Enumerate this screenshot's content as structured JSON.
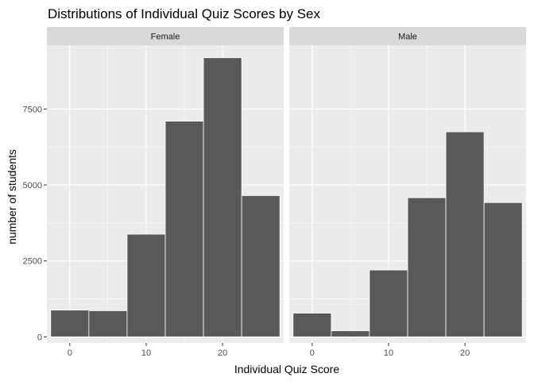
{
  "chart_data": {
    "type": "bar",
    "subtype": "faceted-histogram",
    "title": "Distributions of Individual Quiz Scores by Sex",
    "xlabel": "Individual Quiz Score",
    "ylabel": "number of students",
    "xlim": [
      -3,
      28
    ],
    "ylim": [
      -200,
      9600
    ],
    "x_ticks": [
      0,
      10,
      20
    ],
    "y_ticks": [
      0,
      2500,
      5000,
      7500
    ],
    "bin_width": 5,
    "bins": [
      [
        -2.5,
        2.5
      ],
      [
        2.5,
        7.5
      ],
      [
        7.5,
        12.5
      ],
      [
        12.5,
        17.5
      ],
      [
        17.5,
        22.5
      ],
      [
        22.5,
        27.5
      ]
    ],
    "grid": true,
    "legend": "none",
    "facets": [
      {
        "name": "Female",
        "values": [
          880,
          860,
          3380,
          7100,
          9190,
          4650
        ]
      },
      {
        "name": "Male",
        "values": [
          780,
          200,
          2200,
          4580,
          6750,
          4420
        ]
      }
    ],
    "colors": {
      "bar_fill": "#595959",
      "bar_outline": "#ffffff",
      "panel_background": "#ebebeb",
      "strip_background": "#d9d9d9",
      "grid": "#ffffff"
    }
  }
}
